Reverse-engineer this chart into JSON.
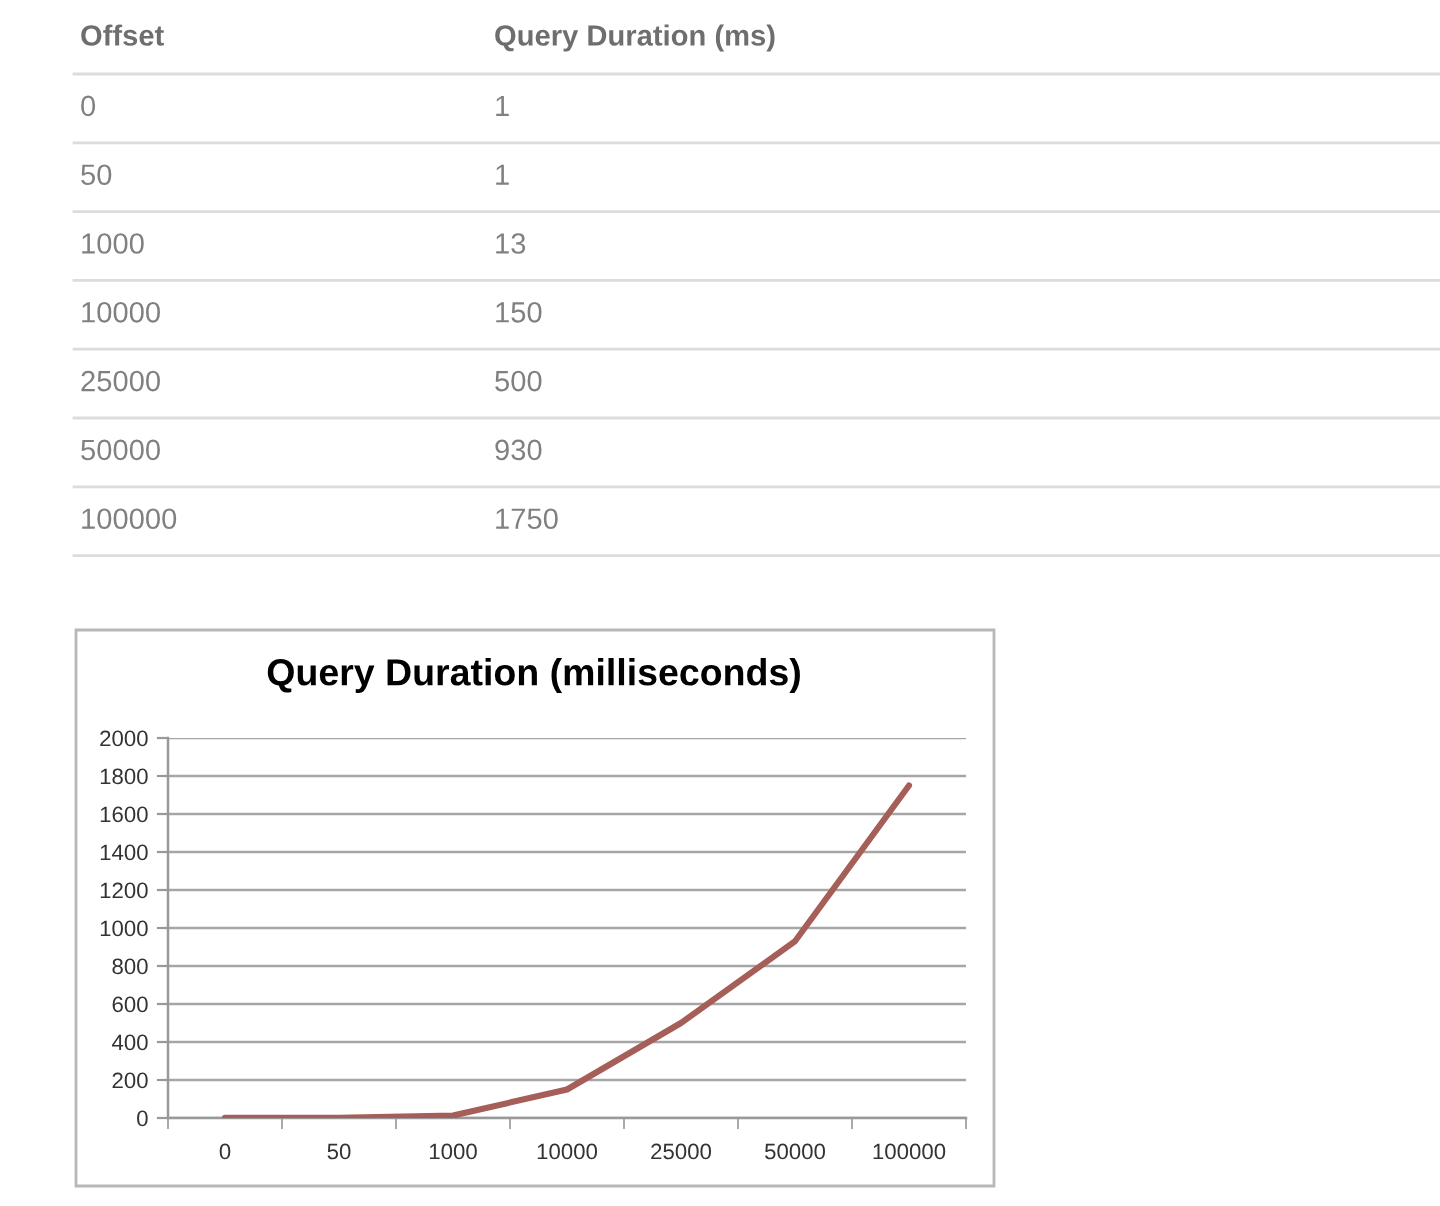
{
  "chart_data": [
    {
      "type": "other",
      "categories": [
        "0",
        "50",
        "1000",
        "10000",
        "25000",
        "50000",
        "100000"
      ],
      "values": [
        1,
        1,
        13,
        150,
        500,
        930,
        1750
      ],
      "data_labels": true,
      "annotations": [
        "Offset",
        "Query Duration (ms)"
      ]
    },
    {
      "type": "line",
      "title": "Query Duration (milliseconds)",
      "categories": [
        "0",
        "50",
        "1000",
        "10000",
        "25000",
        "50000",
        "100000"
      ],
      "series": [
        {
          "color": "#a65e58",
          "values": [
            1,
            1,
            13,
            150,
            500,
            930,
            1750
          ]
        }
      ],
      "ylim": [
        0,
        2000
      ],
      "yticks": [
        0,
        200,
        400,
        600,
        800,
        1000,
        1200,
        1400,
        1600,
        1800,
        2000
      ],
      "grid": "y",
      "marker": "none",
      "line_style": "solid"
    }
  ]
}
